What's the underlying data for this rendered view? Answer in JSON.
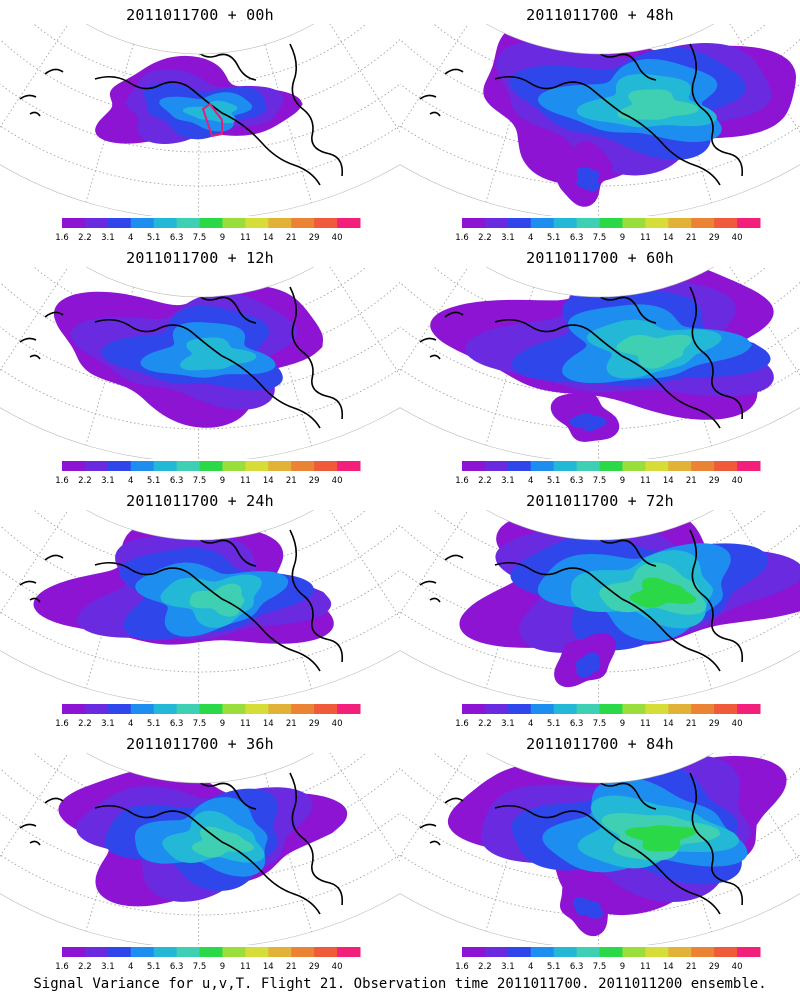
{
  "chart_data": {
    "type": "contour-map",
    "colorbar": {
      "levels": [
        "1.6",
        "2.2",
        "3.1",
        "4",
        "5.1",
        "6.3",
        "7.5",
        "9",
        "11",
        "14",
        "21",
        "29",
        "40"
      ],
      "colors": [
        "#8c14d2",
        "#6a2ae0",
        "#2f47ea",
        "#1d8ef0",
        "#23b8d6",
        "#3fd0b4",
        "#2ad848",
        "#99de3a",
        "#d6dc38",
        "#e2b138",
        "#ea8434",
        "#ee5a3a",
        "#f2207a"
      ]
    },
    "panels": [
      {
        "title": "2011011700 + 00h",
        "col": 0,
        "row": 0,
        "spread": "small",
        "intensity": 3
      },
      {
        "title": "2011011700 + 48h",
        "col": 1,
        "row": 0,
        "spread": "large",
        "intensity": 4
      },
      {
        "title": "2011011700 + 12h",
        "col": 0,
        "row": 1,
        "spread": "medium",
        "intensity": 3
      },
      {
        "title": "2011011700 + 60h",
        "col": 1,
        "row": 1,
        "spread": "large",
        "intensity": 4
      },
      {
        "title": "2011011700 + 24h",
        "col": 0,
        "row": 2,
        "spread": "medium",
        "intensity": 4
      },
      {
        "title": "2011011700 + 72h",
        "col": 1,
        "row": 2,
        "spread": "large",
        "intensity": 5
      },
      {
        "title": "2011011700 + 36h",
        "col": 0,
        "row": 3,
        "spread": "medium",
        "intensity": 4
      },
      {
        "title": "2011011700 + 84h",
        "col": 1,
        "row": 3,
        "spread": "large",
        "intensity": 5
      }
    ],
    "caption": "Signal Variance for u,v,T. Flight 21. Observation time 2011011700. 2011011200 ensemble."
  }
}
